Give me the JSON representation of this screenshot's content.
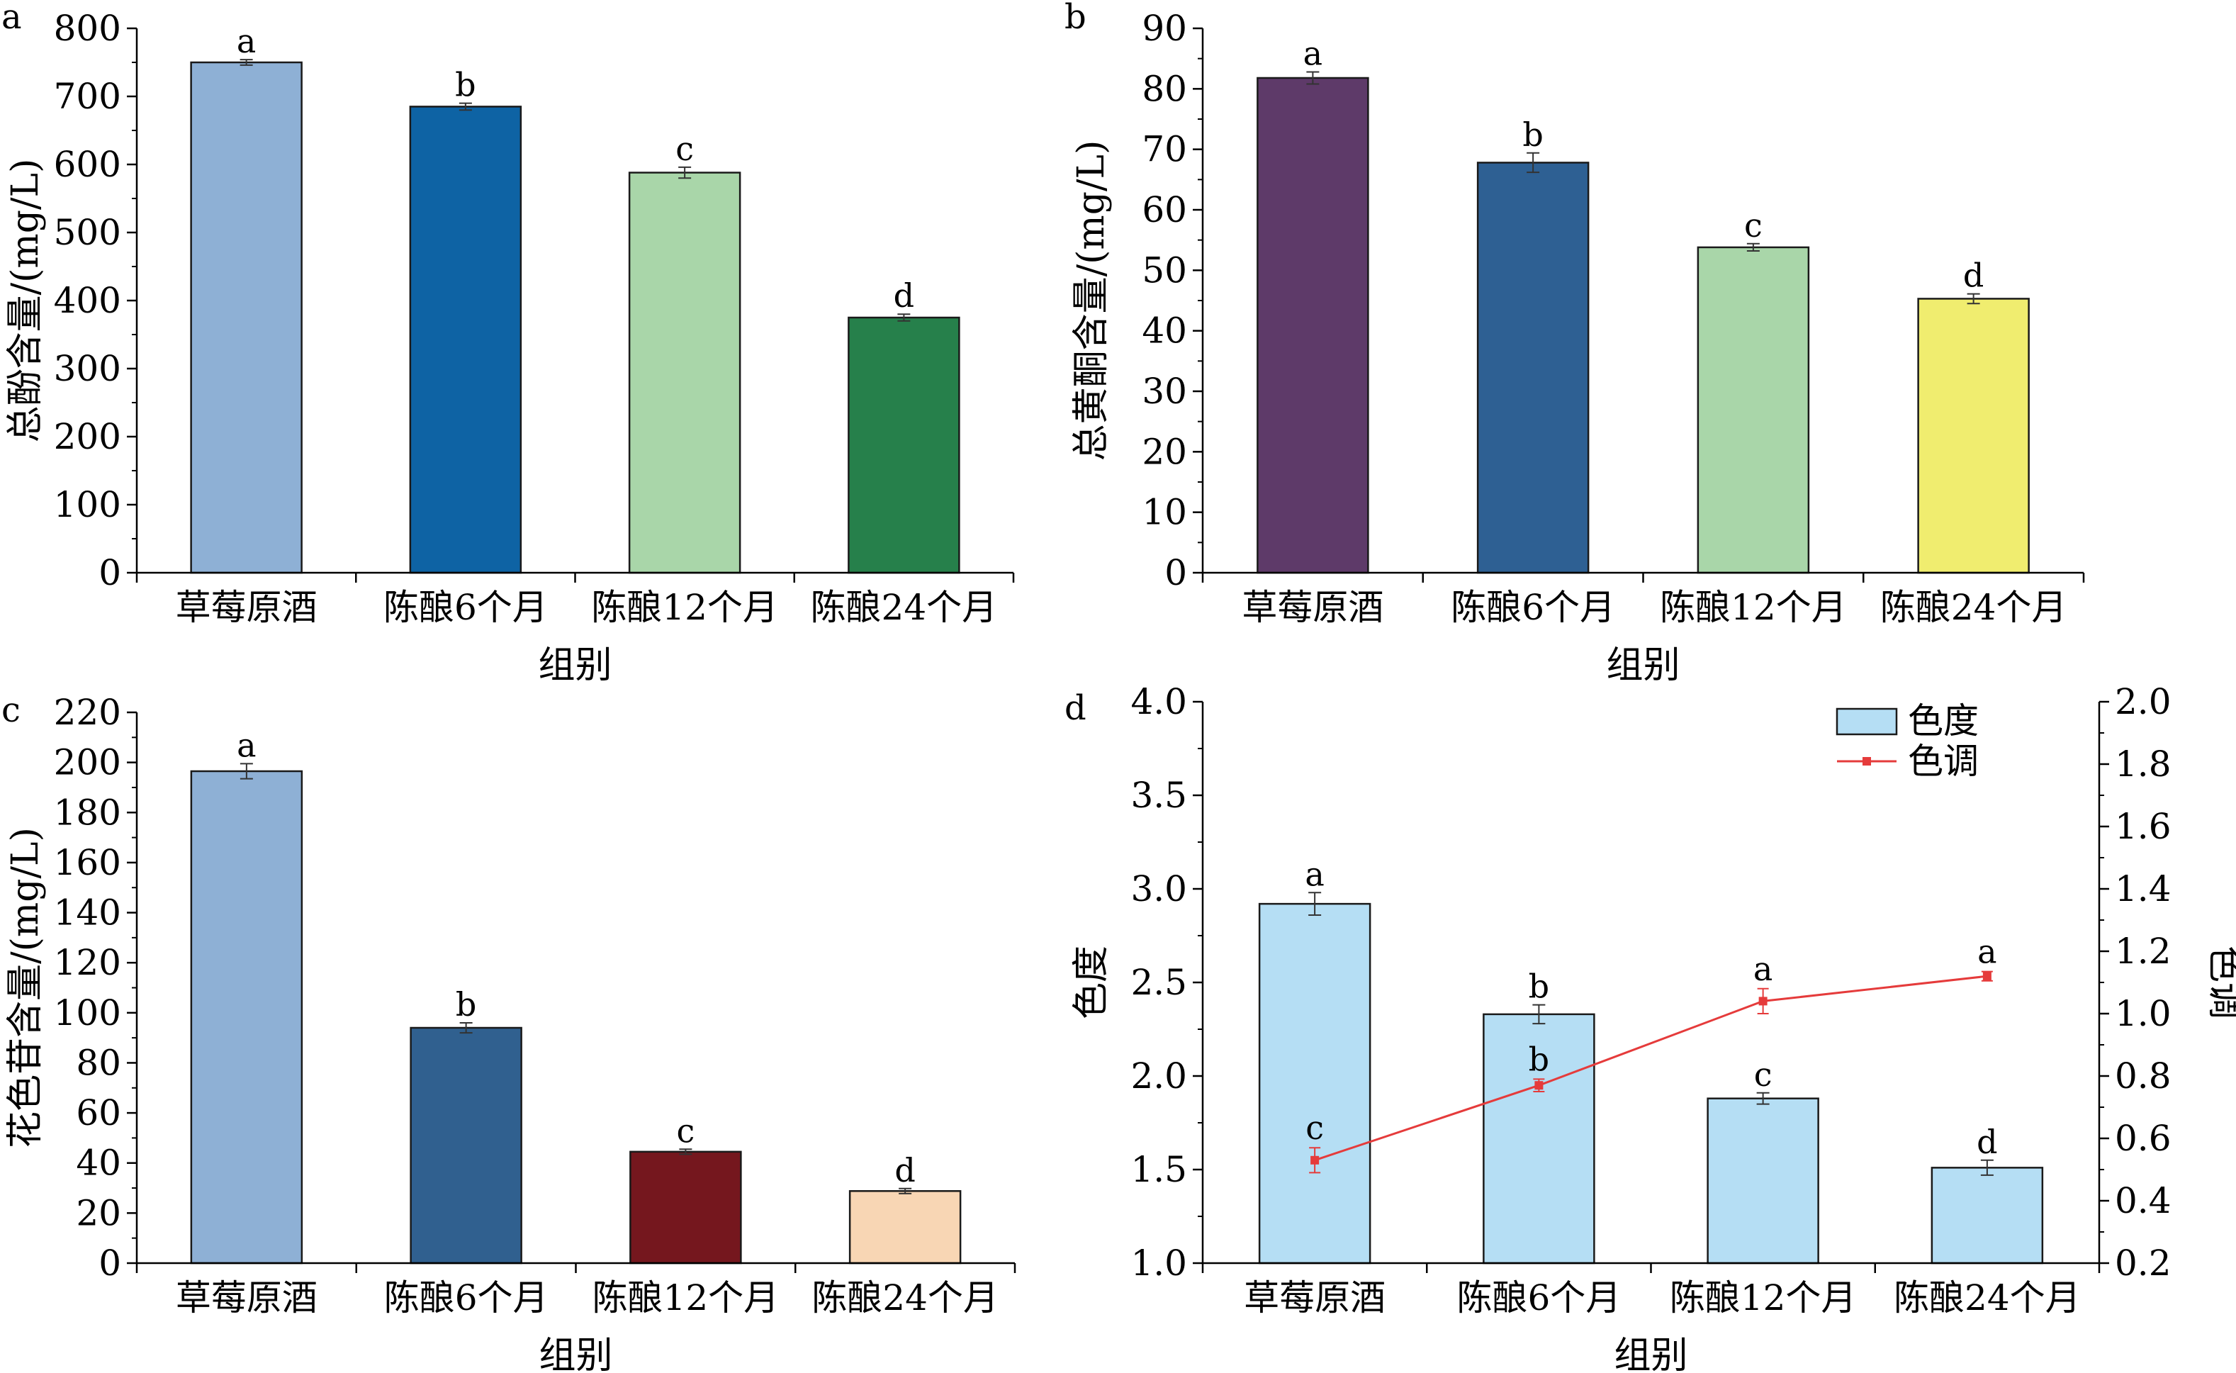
{
  "chart_data": [
    {
      "panel": "a",
      "type": "bar",
      "categories": [
        "草莓原酒",
        "陈酿6个月",
        "陈酿12个月",
        "陈酿24个月"
      ],
      "values": [
        750,
        685,
        588,
        375
      ],
      "errors": [
        4,
        5,
        8,
        5
      ],
      "significance": [
        "a",
        "b",
        "c",
        "d"
      ],
      "colors": [
        "#8eb0d5",
        "#0e63a4",
        "#a9d6a9",
        "#26804b"
      ],
      "xlabel": "组别",
      "ylabel": "总酚含量/(mg/L)",
      "ylim": [
        0,
        800
      ],
      "yticks": [
        0,
        100,
        200,
        300,
        400,
        500,
        600,
        700,
        800
      ]
    },
    {
      "panel": "b",
      "type": "bar",
      "categories": [
        "草莓原酒",
        "陈酿6个月",
        "陈酿12个月",
        "陈酿24个月"
      ],
      "values": [
        81.8,
        67.8,
        53.8,
        45.3
      ],
      "errors": [
        1.0,
        1.6,
        0.6,
        0.8
      ],
      "significance": [
        "a",
        "b",
        "c",
        "d"
      ],
      "colors": [
        "#5e3a69",
        "#2e6093",
        "#a9d6a9",
        "#f0ed6f"
      ],
      "xlabel": "组别",
      "ylabel": "总黄酮含量/(mg/L)",
      "ylim": [
        0,
        90
      ],
      "yticks": [
        0,
        10,
        20,
        30,
        40,
        50,
        60,
        70,
        80,
        90
      ]
    },
    {
      "panel": "c",
      "type": "bar",
      "categories": [
        "草莓原酒",
        "陈酿6个月",
        "陈酿12个月",
        "陈酿24个月"
      ],
      "values": [
        196.5,
        94,
        44.5,
        28.8
      ],
      "errors": [
        3,
        2,
        1,
        1
      ],
      "significance": [
        "a",
        "b",
        "c",
        "d"
      ],
      "colors": [
        "#8eb0d5",
        "#30608f",
        "#75171e",
        "#f8d6b4"
      ],
      "xlabel": "组别",
      "ylabel": "花色苷含量/(mg/L)",
      "ylim": [
        0,
        220
      ],
      "yticks": [
        0,
        20,
        40,
        60,
        80,
        100,
        120,
        140,
        160,
        180,
        200,
        220
      ]
    },
    {
      "panel": "d",
      "type": "bar",
      "categories": [
        "草莓原酒",
        "陈酿6个月",
        "陈酿12个月",
        "陈酿24个月"
      ],
      "series": [
        {
          "name": "色度",
          "type": "bar",
          "axis": "left",
          "values": [
            2.92,
            2.33,
            1.88,
            1.51
          ],
          "errors": [
            0.06,
            0.05,
            0.03,
            0.04
          ],
          "significance": [
            "a",
            "b",
            "c",
            "d"
          ],
          "color": "#b5def4"
        },
        {
          "name": "色调",
          "type": "line",
          "axis": "right",
          "values": [
            0.53,
            0.77,
            1.04,
            1.12
          ],
          "errors": [
            0.04,
            0.02,
            0.04,
            0.015
          ],
          "significance": [
            "c",
            "b",
            "a",
            "a"
          ],
          "color": "#e53b3b"
        }
      ],
      "xlabel": "组别",
      "ylabel": "色度",
      "y2label": "色调",
      "ylim": [
        1.0,
        4.0
      ],
      "yticks": [
        "1.0",
        "1.5",
        "2.0",
        "2.5",
        "3.0",
        "3.5",
        "4.0"
      ],
      "y2lim": [
        0.2,
        2.0
      ],
      "y2ticks": [
        "0.2",
        "0.4",
        "0.6",
        "0.8",
        "1.0",
        "1.2",
        "1.4",
        "1.6",
        "1.8",
        "2.0"
      ],
      "legend": "top-right"
    }
  ]
}
